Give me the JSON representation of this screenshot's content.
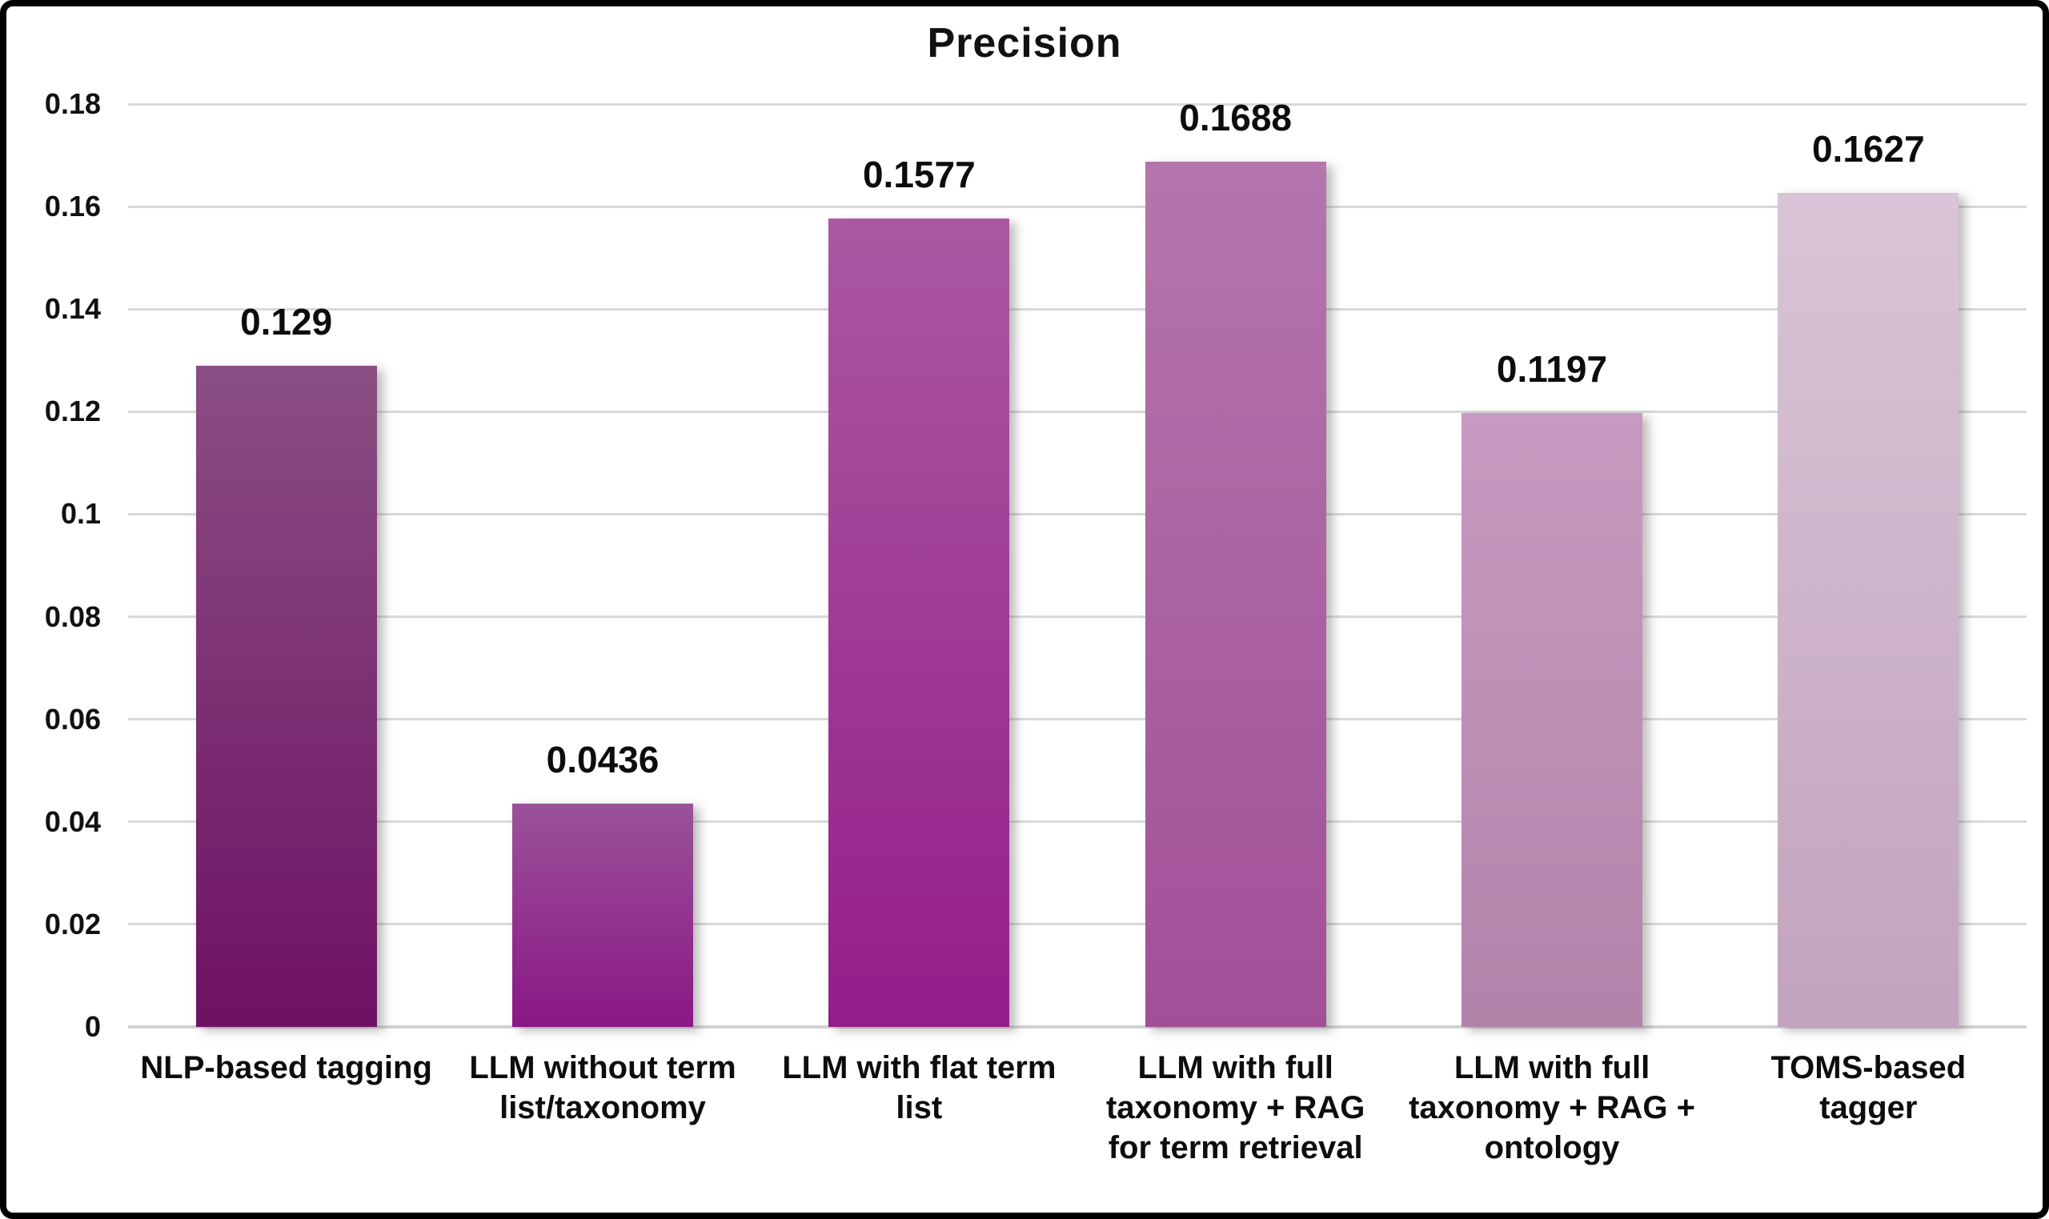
{
  "chart_data": {
    "type": "bar",
    "title": "Precision",
    "categories": [
      "NLP-based tagging",
      "LLM without term list/taxonomy",
      "LLM with flat term list",
      "LLM with full taxonomy + RAG for term retrieval",
      "LLM with full taxonomy + RAG + ontology",
      "TOMS-based tagger"
    ],
    "categories_wrapped": [
      "NLP-based tagging",
      "LLM without term\nlist/taxonomy",
      "LLM with flat term\nlist",
      "LLM with full\ntaxonomy + RAG\nfor term retrieval",
      "LLM with full\ntaxonomy + RAG +\nontology",
      "TOMS-based\ntagger"
    ],
    "values": [
      0.129,
      0.0436,
      0.1577,
      0.1688,
      0.1197,
      0.1627
    ],
    "value_labels": [
      "0.129",
      "0.0436",
      "0.1577",
      "0.1688",
      "0.1197",
      "0.1627"
    ],
    "xlabel": "",
    "ylabel": "",
    "ylim": [
      0,
      0.18
    ],
    "ytick_labels": [
      "0.18",
      "0.16",
      "0.14",
      "0.12",
      "0.1",
      "0.08",
      "0.06",
      "0.04",
      "0.02",
      "0"
    ],
    "ytick_values": [
      0.18,
      0.16,
      0.14,
      0.12,
      0.1,
      0.08,
      0.06,
      0.04,
      0.02,
      0
    ],
    "grid": true,
    "legend": false,
    "colors": {
      "bar_gradients": [
        {
          "top": "#8a4e83",
          "bottom": "#6e1164"
        },
        {
          "top": "#9a5298",
          "bottom": "#8a1786"
        },
        {
          "top": "#aa58a1",
          "bottom": "#951d8a"
        },
        {
          "top": "#b476ac",
          "bottom": "#a24f98"
        },
        {
          "top": "#c79bc1",
          "bottom": "#b283aa"
        },
        {
          "top": "#dac4d7",
          "bottom": "#c2a3bd"
        }
      ],
      "gridline": "#d9d9d9",
      "axis_line": "#d2d2d2",
      "text": "#0d0d0d",
      "background": "#ffffff",
      "frame_border": "#000000"
    }
  }
}
